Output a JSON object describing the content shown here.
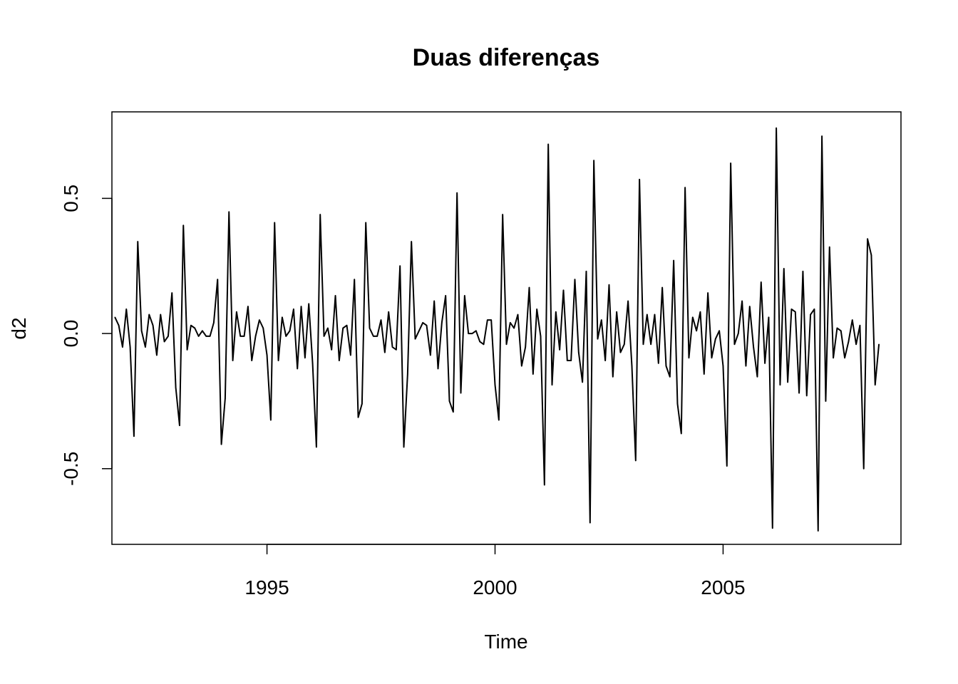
{
  "chart_data": {
    "type": "line",
    "title": "Duas diferenças",
    "xlabel": "Time",
    "ylabel": "d2",
    "xlim": [
      1991.6,
      2008.9
    ],
    "ylim": [
      -0.78,
      0.82
    ],
    "x_ticks": [
      {
        "value": 1995,
        "label": "1995"
      },
      {
        "value": 2000,
        "label": "2000"
      },
      {
        "value": 2005,
        "label": "2005"
      }
    ],
    "y_ticks": [
      {
        "value": -0.5,
        "label": "-0.5"
      },
      {
        "value": 0.0,
        "label": "0.0"
      },
      {
        "value": 0.5,
        "label": "0.5"
      }
    ],
    "grid": false,
    "frequency": 12,
    "start": [
      1991,
      9
    ],
    "series": [
      {
        "color": "#000000",
        "values": [
          0.06,
          0.03,
          -0.05,
          0.09,
          -0.05,
          -0.38,
          0.34,
          0.01,
          -0.05,
          0.07,
          0.03,
          -0.08,
          0.07,
          -0.03,
          -0.01,
          0.15,
          -0.2,
          -0.34,
          0.4,
          -0.06,
          0.03,
          0.02,
          -0.01,
          0.01,
          -0.01,
          -0.01,
          0.04,
          0.2,
          -0.41,
          -0.24,
          0.45,
          -0.1,
          0.08,
          -0.01,
          -0.01,
          0.1,
          -0.1,
          -0.01,
          0.05,
          0.02,
          -0.08,
          -0.32,
          0.41,
          -0.1,
          0.06,
          -0.01,
          0.01,
          0.09,
          -0.13,
          0.1,
          -0.09,
          0.11,
          -0.11,
          -0.42,
          0.44,
          -0.01,
          0.02,
          -0.06,
          0.14,
          -0.1,
          0.02,
          0.03,
          -0.08,
          0.2,
          -0.31,
          -0.26,
          0.41,
          0.02,
          -0.01,
          -0.01,
          0.05,
          -0.07,
          0.08,
          -0.05,
          -0.06,
          0.25,
          -0.42,
          -0.15,
          0.34,
          -0.02,
          0.01,
          0.04,
          0.03,
          -0.08,
          0.12,
          -0.13,
          0.04,
          0.14,
          -0.25,
          -0.29,
          0.52,
          -0.22,
          0.14,
          0.0,
          0.0,
          0.01,
          -0.03,
          -0.04,
          0.05,
          0.05,
          -0.19,
          -0.32,
          0.44,
          -0.04,
          0.04,
          0.02,
          0.07,
          -0.12,
          -0.05,
          0.17,
          -0.15,
          0.09,
          -0.01,
          -0.56,
          0.7,
          -0.19,
          0.08,
          -0.06,
          0.16,
          -0.1,
          -0.1,
          0.2,
          -0.07,
          -0.18,
          0.23,
          -0.7,
          0.64,
          -0.02,
          0.05,
          -0.1,
          0.18,
          -0.16,
          0.08,
          -0.07,
          -0.04,
          0.12,
          -0.12,
          -0.47,
          0.57,
          -0.04,
          0.07,
          -0.04,
          0.07,
          -0.11,
          0.17,
          -0.12,
          -0.16,
          0.27,
          -0.26,
          -0.37,
          0.54,
          -0.09,
          0.06,
          0.01,
          0.08,
          -0.15,
          0.15,
          -0.09,
          -0.02,
          0.01,
          -0.12,
          -0.49,
          0.63,
          -0.04,
          0.0,
          0.12,
          -0.12,
          0.1,
          -0.05,
          -0.16,
          0.19,
          -0.11,
          0.06,
          -0.72,
          0.76,
          -0.19,
          0.24,
          -0.18,
          0.09,
          0.08,
          -0.22,
          0.23,
          -0.23,
          0.07,
          0.09,
          -0.73,
          0.73,
          -0.25,
          0.32,
          -0.09,
          0.02,
          0.01,
          -0.09,
          -0.03,
          0.05,
          -0.04,
          0.03,
          -0.5,
          0.35,
          0.29,
          -0.19,
          -0.04
        ]
      }
    ]
  }
}
